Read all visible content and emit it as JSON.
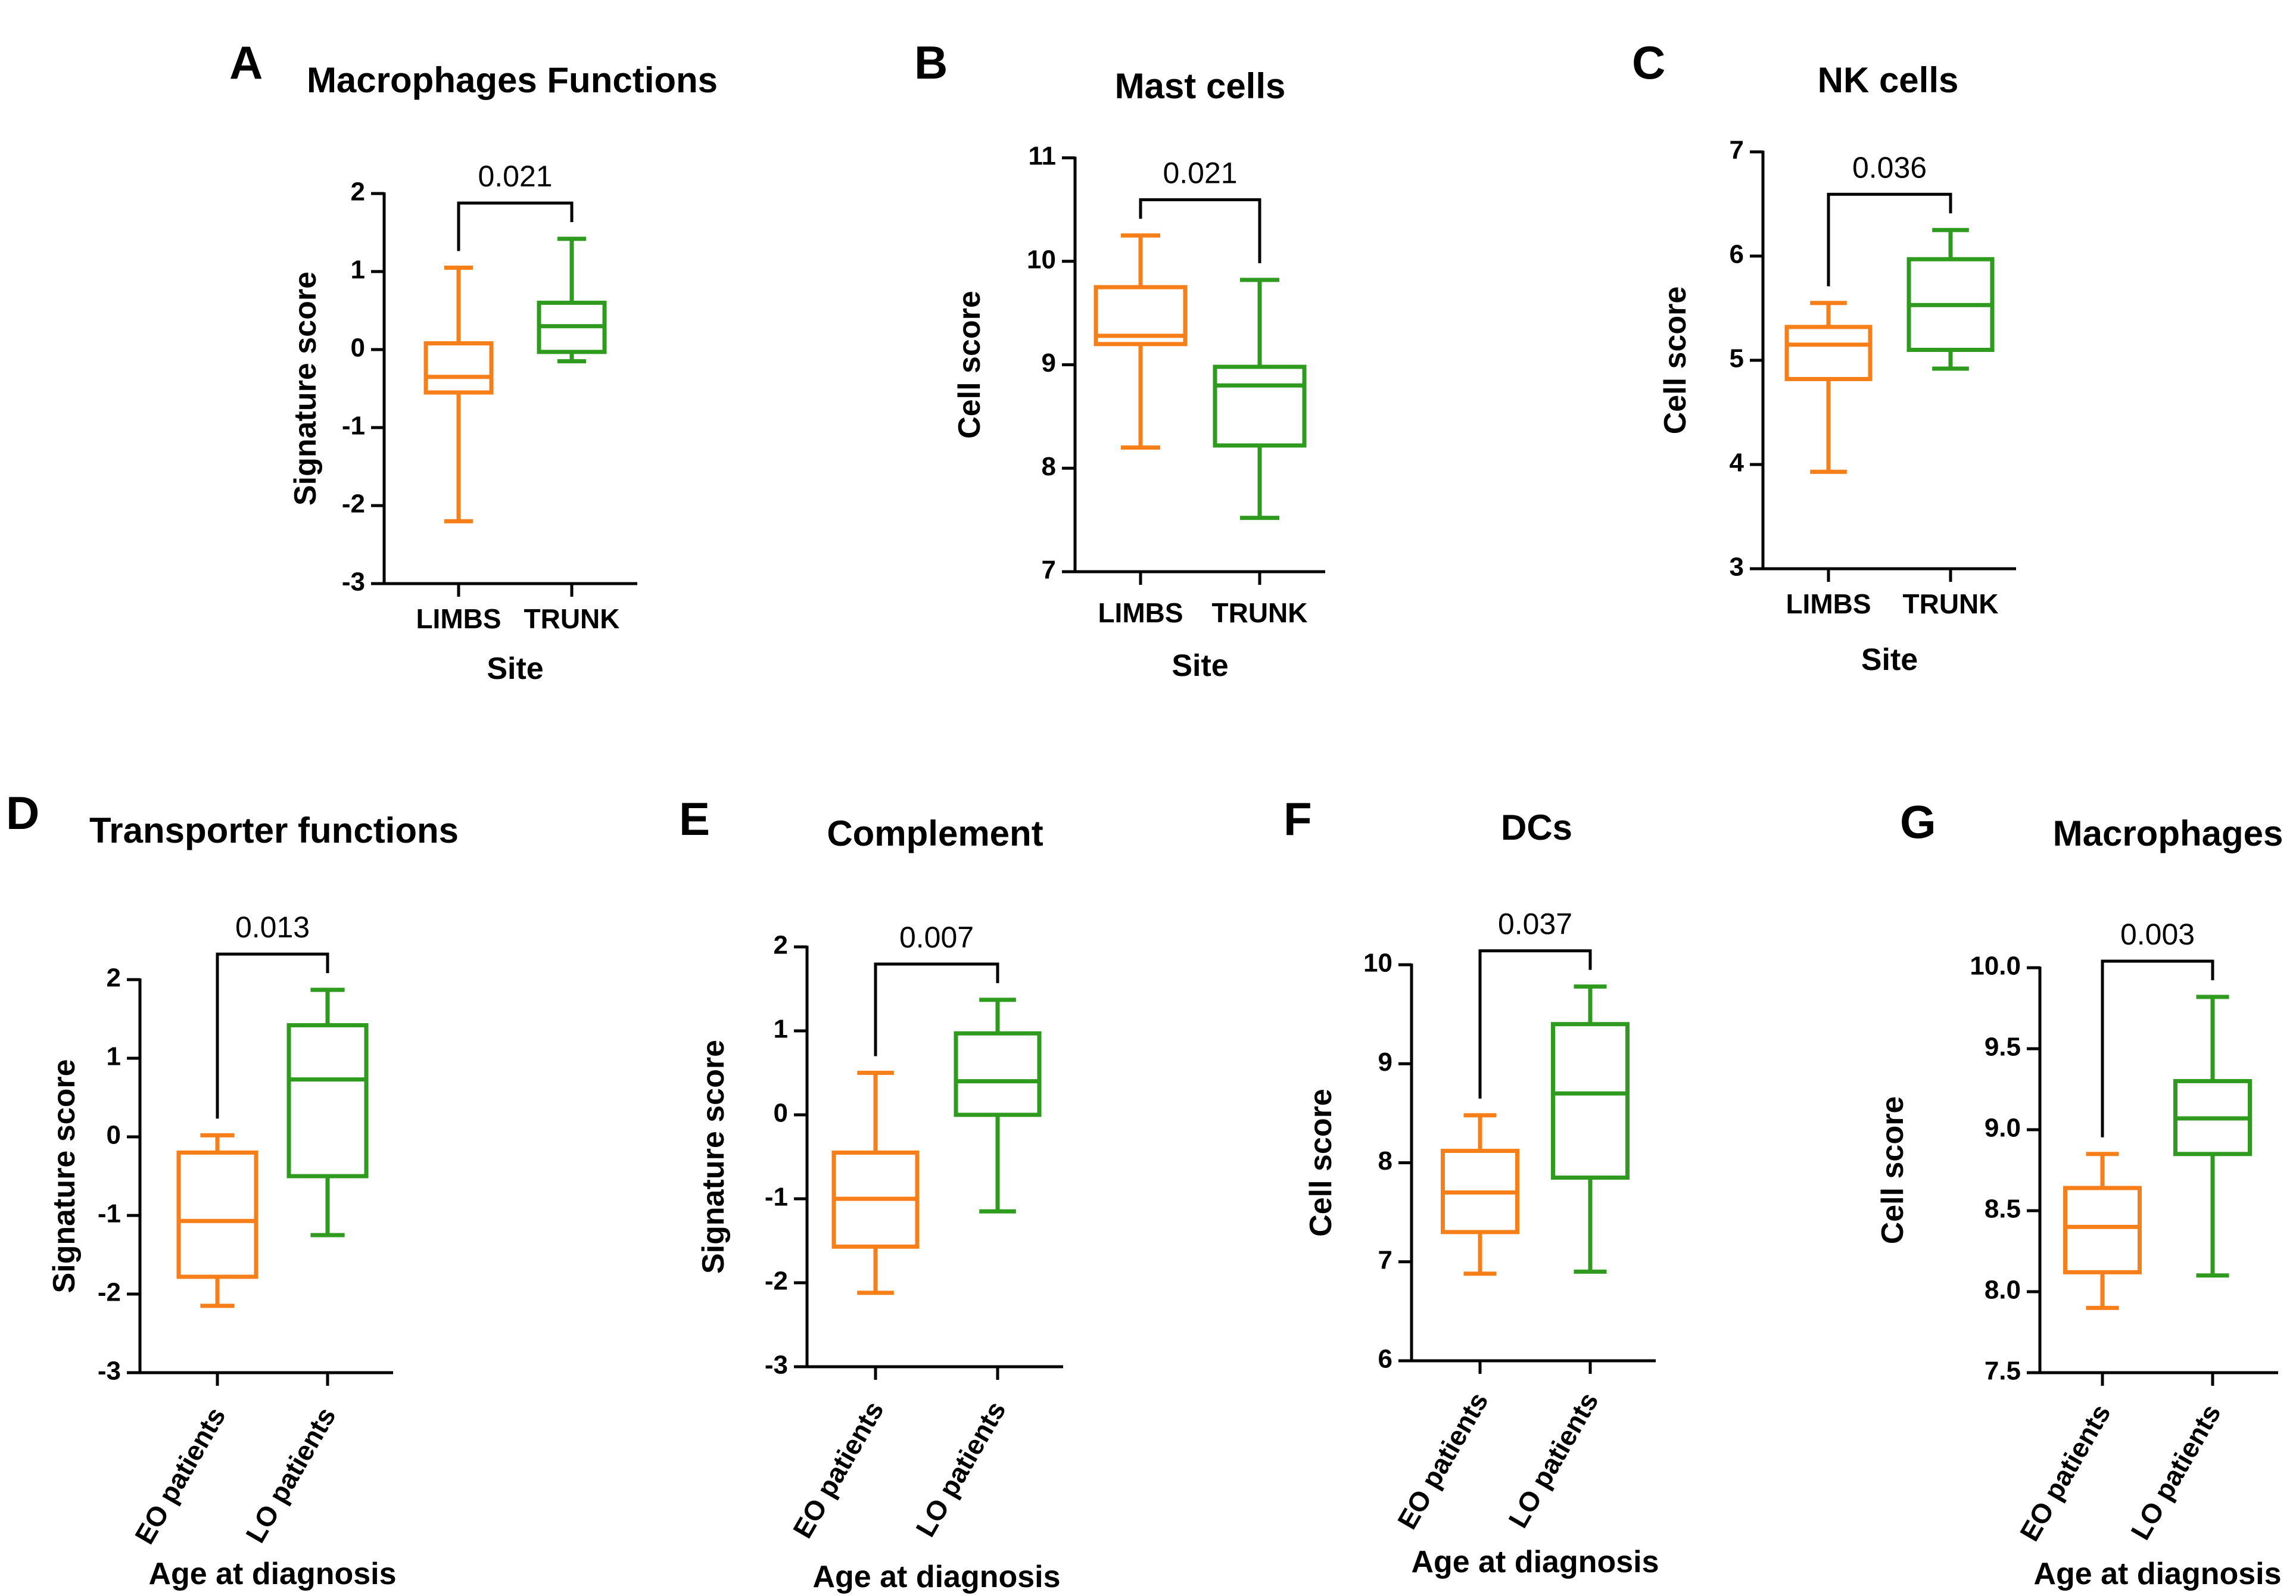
{
  "colors": {
    "orange": "#F77F19",
    "green": "#2E9A1E",
    "axis": "#000000"
  },
  "chart_data": [
    {
      "letter": "A",
      "type": "box",
      "title": "Macrophages Functions",
      "ylabel": "Signature score",
      "xlabel": "Site",
      "ylim": [
        -3,
        2
      ],
      "yticks": [
        "-3",
        "-2",
        "-1",
        "0",
        "1",
        "2"
      ],
      "tick_values": [
        -3,
        -2,
        -1,
        0,
        1,
        2
      ],
      "categories": [
        "LIMBS",
        "TRUNK"
      ],
      "rotate_labels": false,
      "boxes": [
        {
          "name": "LIMBS",
          "min": -2.2,
          "q1": -0.55,
          "median": -0.35,
          "q3": 0.08,
          "max": 1.05
        },
        {
          "name": "TRUNK",
          "min": -0.15,
          "q1": -0.03,
          "median": 0.3,
          "q3": 0.6,
          "max": 1.42
        }
      ],
      "pvalue": "0.021"
    },
    {
      "letter": "B",
      "type": "box",
      "title": "Mast cells",
      "ylabel": "Cell score",
      "xlabel": "Site",
      "ylim": [
        7,
        11
      ],
      "yticks": [
        "7",
        "8",
        "9",
        "10",
        "11"
      ],
      "tick_values": [
        7,
        8,
        9,
        10,
        11
      ],
      "categories": [
        "LIMBS",
        "TRUNK"
      ],
      "rotate_labels": false,
      "boxes": [
        {
          "name": "LIMBS",
          "min": 8.2,
          "q1": 9.2,
          "median": 9.28,
          "q3": 9.75,
          "max": 10.25
        },
        {
          "name": "TRUNK",
          "min": 7.52,
          "q1": 8.22,
          "median": 8.8,
          "q3": 8.98,
          "max": 9.82
        }
      ],
      "pvalue": "0.021"
    },
    {
      "letter": "C",
      "type": "box",
      "title": "NK cells",
      "ylabel": "Cell score",
      "xlabel": "Site",
      "ylim": [
        3,
        7
      ],
      "yticks": [
        "3",
        "4",
        "5",
        "6",
        "7"
      ],
      "tick_values": [
        3,
        4,
        5,
        6,
        7
      ],
      "categories": [
        "LIMBS",
        "TRUNK"
      ],
      "rotate_labels": false,
      "boxes": [
        {
          "name": "LIMBS",
          "min": 3.93,
          "q1": 4.82,
          "median": 5.15,
          "q3": 5.32,
          "max": 5.55
        },
        {
          "name": "TRUNK",
          "min": 4.92,
          "q1": 5.1,
          "median": 5.53,
          "q3": 5.97,
          "max": 6.25
        }
      ],
      "pvalue": "0.036"
    },
    {
      "letter": "D",
      "type": "box",
      "title": "Transporter functions",
      "ylabel": "Signature score",
      "xlabel": "Age at diagnosis",
      "ylim": [
        -3,
        2
      ],
      "yticks": [
        "-3",
        "-2",
        "-1",
        "0",
        "1",
        "2"
      ],
      "tick_values": [
        -3,
        -2,
        -1,
        0,
        1,
        2
      ],
      "categories": [
        "EO patients",
        "LO patients"
      ],
      "rotate_labels": true,
      "boxes": [
        {
          "name": "EO patients",
          "min": -2.15,
          "q1": -1.78,
          "median": -1.07,
          "q3": -0.2,
          "max": 0.02
        },
        {
          "name": "LO patients",
          "min": -1.25,
          "q1": -0.5,
          "median": 0.73,
          "q3": 1.42,
          "max": 1.87
        }
      ],
      "pvalue": "0.013"
    },
    {
      "letter": "E",
      "type": "box",
      "title": "Complement",
      "ylabel": "Signature score",
      "xlabel": "Age at diagnosis",
      "ylim": [
        -3,
        2
      ],
      "yticks": [
        "-3",
        "-2",
        "-1",
        "0",
        "1",
        "2"
      ],
      "tick_values": [
        -3,
        -2,
        -1,
        0,
        1,
        2
      ],
      "categories": [
        "EO patients",
        "LO patients"
      ],
      "rotate_labels": true,
      "boxes": [
        {
          "name": "EO patients",
          "min": -2.12,
          "q1": -1.57,
          "median": -1.0,
          "q3": -0.45,
          "max": 0.5
        },
        {
          "name": "LO patients",
          "min": -1.15,
          "q1": 0.0,
          "median": 0.4,
          "q3": 0.97,
          "max": 1.37
        }
      ],
      "pvalue": "0.007"
    },
    {
      "letter": "F",
      "type": "box",
      "title": "DCs",
      "ylabel": "Cell score",
      "xlabel": "Age at diagnosis",
      "ylim": [
        6,
        10
      ],
      "yticks": [
        "6",
        "7",
        "8",
        "9",
        "10"
      ],
      "tick_values": [
        6,
        7,
        8,
        9,
        10
      ],
      "categories": [
        "EO patients",
        "LO patients"
      ],
      "rotate_labels": true,
      "boxes": [
        {
          "name": "EO patients",
          "min": 6.88,
          "q1": 7.3,
          "median": 7.7,
          "q3": 8.12,
          "max": 8.48
        },
        {
          "name": "LO patients",
          "min": 6.9,
          "q1": 7.85,
          "median": 8.7,
          "q3": 9.4,
          "max": 9.78
        }
      ],
      "pvalue": "0.037"
    },
    {
      "letter": "G",
      "type": "box",
      "title": "Macrophages",
      "ylabel": "Cell score",
      "xlabel": "Age at diagnosis",
      "ylim": [
        7.5,
        10.0
      ],
      "yticks": [
        "7.5",
        "8.0",
        "8.5",
        "9.0",
        "9.5",
        "10.0"
      ],
      "tick_values": [
        7.5,
        8.0,
        8.5,
        9.0,
        9.5,
        10.0
      ],
      "categories": [
        "EO patients",
        "LO patients"
      ],
      "rotate_labels": true,
      "boxes": [
        {
          "name": "EO patients",
          "min": 7.9,
          "q1": 8.12,
          "median": 8.4,
          "q3": 8.64,
          "max": 8.85
        },
        {
          "name": "LO patients",
          "min": 8.1,
          "q1": 8.85,
          "median": 9.07,
          "q3": 9.3,
          "max": 9.82
        }
      ],
      "pvalue": "0.003"
    }
  ]
}
